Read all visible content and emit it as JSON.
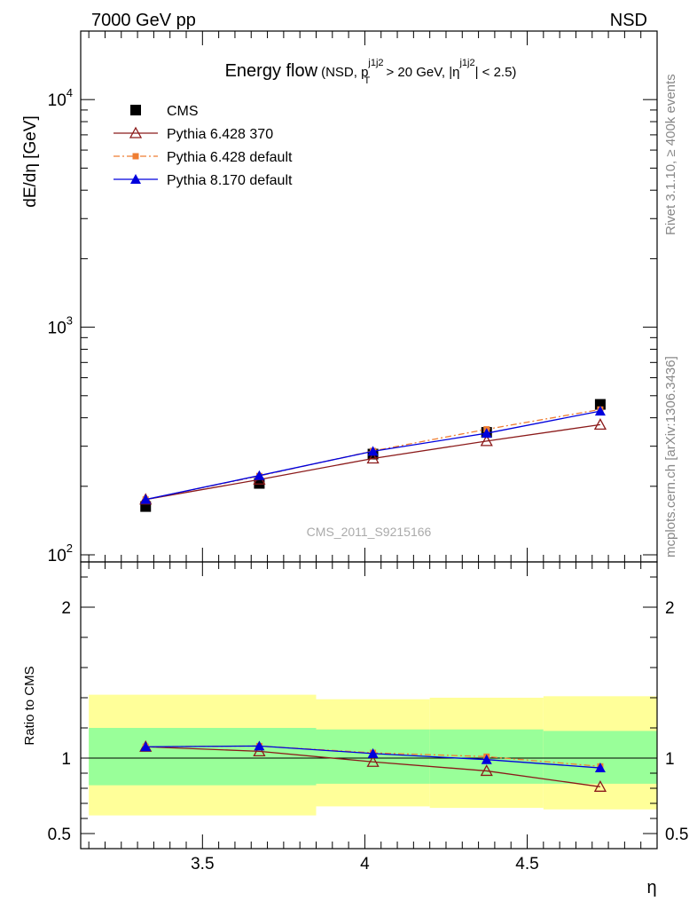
{
  "header": {
    "left": "7000 GeV pp",
    "right": "NSD"
  },
  "side_labels": {
    "rivet": "Rivet 3.1.10, ≥ 400k events",
    "mcplots": "mcplots.cern.ch [arXiv:1306.3436]"
  },
  "watermark": "CMS_2011_S9215166",
  "chart_data": [
    {
      "type": "line",
      "panel": "main",
      "title_main": "Energy flow",
      "title_sub": "(NSD, p",
      "title_sub_sup1": "j1j2",
      "title_sub_sub1": "T",
      "title_sub_mid": " > 20 GeV, |η",
      "title_sub_sup2": "j1j2",
      "title_sub_end": "| < 2.5)",
      "ylabel": "dE/dη [GeV]",
      "yscale": "log",
      "ylim": [
        100,
        20000
      ],
      "xlim": [
        3.125,
        4.9
      ],
      "y_tick_labels": [
        {
          "base": "10",
          "exp": "2",
          "value": 100
        },
        {
          "base": "10",
          "exp": "3",
          "value": 1000
        },
        {
          "base": "10",
          "exp": "4",
          "value": 10000
        }
      ],
      "legend_position": "top-left",
      "series": [
        {
          "name": "CMS",
          "style": "square",
          "color": "#000000",
          "x": [
            3.325,
            3.675,
            4.025,
            4.375,
            4.725
          ],
          "y": [
            163,
            206,
            277,
            345,
            458
          ],
          "yerr_low": [
            1,
            1,
            1,
            1,
            1
          ],
          "yerr_high": [
            1,
            1,
            1,
            1,
            1
          ]
        },
        {
          "name": "Pythia 6.428 370",
          "style": "open-triangle-line",
          "color": "#8b1a1a",
          "x": [
            3.325,
            3.675,
            4.025,
            4.375,
            4.725
          ],
          "y": [
            175,
            214,
            265,
            316,
            373
          ]
        },
        {
          "name": "Pythia 6.428 default",
          "style": "square-dashdot",
          "color": "#ef7e33",
          "x": [
            3.325,
            3.675,
            4.025,
            4.375,
            4.725
          ],
          "y": [
            175,
            222,
            286,
            356,
            435
          ]
        },
        {
          "name": "Pythia 8.170 default",
          "style": "filled-triangle-line",
          "color": "#0000dd",
          "x": [
            3.325,
            3.675,
            4.025,
            4.375,
            4.725
          ],
          "y": [
            175,
            223,
            285,
            342,
            428
          ]
        }
      ]
    },
    {
      "type": "line",
      "panel": "ratio",
      "ylabel": "Ratio to CMS",
      "xlabel": "η",
      "ylim": [
        0.4,
        2.3
      ],
      "xlim": [
        3.125,
        4.9
      ],
      "x_tick_labels": [
        "3.5",
        "4",
        "4.5"
      ],
      "x_ticks": [
        3.5,
        4.0,
        4.5
      ],
      "y_tick_labels": [
        "0.5",
        "1",
        "2"
      ],
      "y_ticks": [
        0.5,
        1,
        2
      ],
      "bands": [
        {
          "x0": 3.15,
          "x1": 3.85,
          "green": [
            0.82,
            1.2
          ],
          "yellow": [
            0.62,
            1.42
          ]
        },
        {
          "x0": 3.85,
          "x1": 4.2,
          "green": [
            0.83,
            1.19
          ],
          "yellow": [
            0.68,
            1.39
          ]
        },
        {
          "x0": 4.2,
          "x1": 4.55,
          "green": [
            0.83,
            1.19
          ],
          "yellow": [
            0.67,
            1.4
          ]
        },
        {
          "x0": 4.55,
          "x1": 4.9,
          "green": [
            0.83,
            1.18
          ],
          "yellow": [
            0.66,
            1.41
          ]
        }
      ],
      "band_colors": {
        "green": "#99ff99",
        "yellow": "#ffff99"
      },
      "series": [
        {
          "name": "Pythia 6.428 370",
          "color": "#8b1a1a",
          "x": [
            3.325,
            3.675,
            4.025,
            4.375,
            4.725
          ],
          "y": [
            1.075,
            1.045,
            0.975,
            0.915,
            0.81
          ]
        },
        {
          "name": "Pythia 6.428 default",
          "color": "#ef7e33",
          "x": [
            3.325,
            3.675,
            4.025,
            4.375,
            4.725
          ],
          "y": [
            1.075,
            1.08,
            1.035,
            1.01,
            0.945
          ]
        },
        {
          "name": "Pythia 8.170 default",
          "color": "#0000dd",
          "x": [
            3.325,
            3.675,
            4.025,
            4.375,
            4.725
          ],
          "y": [
            1.075,
            1.08,
            1.03,
            0.99,
            0.935
          ]
        }
      ]
    }
  ]
}
